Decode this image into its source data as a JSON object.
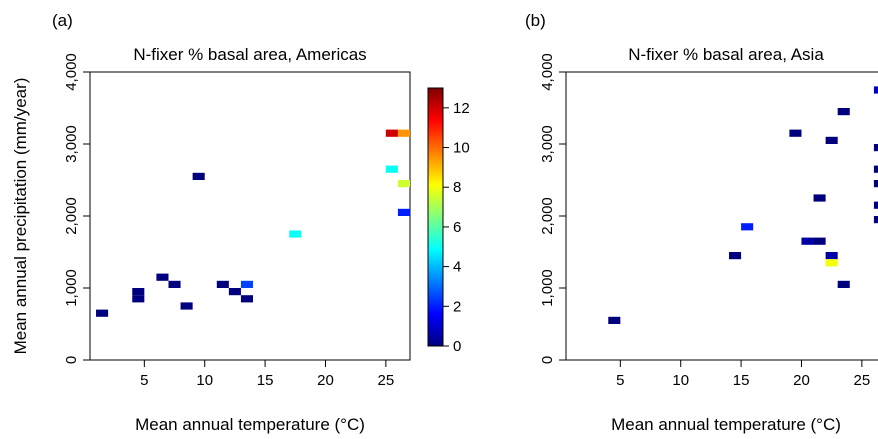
{
  "chart_data": [
    {
      "type": "heatmap",
      "panel_label": "(a)",
      "title": "N-fixer % basal area, Americas",
      "xlabel": "Mean annual temperature (°C)",
      "ylabel": "Mean annual precipitation (mm/year)",
      "xlim": [
        0.5,
        27
      ],
      "ylim": [
        0,
        4000
      ],
      "xticks": [
        5,
        10,
        15,
        20,
        25
      ],
      "yticks": [
        0,
        1000,
        2000,
        3000,
        4000
      ],
      "ytick_labels": [
        "0",
        "1,000",
        "2,000",
        "3,000",
        "4,000"
      ],
      "cells": [
        {
          "x": 1.5,
          "y": 650,
          "value": 0
        },
        {
          "x": 4.5,
          "y": 850,
          "value": 0
        },
        {
          "x": 4.5,
          "y": 950,
          "value": 0
        },
        {
          "x": 6.5,
          "y": 1150,
          "value": 0
        },
        {
          "x": 7.5,
          "y": 1050,
          "value": 0
        },
        {
          "x": 8.5,
          "y": 750,
          "value": 0
        },
        {
          "x": 9.5,
          "y": 2550,
          "value": 0
        },
        {
          "x": 11.5,
          "y": 1050,
          "value": 0
        },
        {
          "x": 12.5,
          "y": 950,
          "value": 0
        },
        {
          "x": 13.5,
          "y": 850,
          "value": 0
        },
        {
          "x": 13.5,
          "y": 1050,
          "value": 2.5
        },
        {
          "x": 17.5,
          "y": 1750,
          "value": 5
        },
        {
          "x": 25.5,
          "y": 3150,
          "value": 12
        },
        {
          "x": 26.5,
          "y": 3150,
          "value": 9.5
        },
        {
          "x": 25.5,
          "y": 2650,
          "value": 5
        },
        {
          "x": 26.5,
          "y": 2450,
          "value": 7.5
        },
        {
          "x": 26.5,
          "y": 2050,
          "value": 2
        }
      ]
    },
    {
      "type": "heatmap",
      "panel_label": "(b)",
      "title": "N-fixer % basal area, Asia",
      "xlabel": "Mean annual temperature (°C)",
      "ylabel": "",
      "xlim": [
        0.5,
        27
      ],
      "ylim": [
        0,
        4000
      ],
      "xticks": [
        5,
        10,
        15,
        20,
        25
      ],
      "yticks": [
        0,
        1000,
        2000,
        3000,
        4000
      ],
      "ytick_labels": [
        "0",
        "1,000",
        "2,000",
        "3,000",
        "4,000"
      ],
      "cells": [
        {
          "x": 4.5,
          "y": 550,
          "value": 0
        },
        {
          "x": 14.5,
          "y": 1450,
          "value": 0
        },
        {
          "x": 15.5,
          "y": 1850,
          "value": 2
        },
        {
          "x": 19.5,
          "y": 3150,
          "value": 0
        },
        {
          "x": 20.5,
          "y": 1650,
          "value": 0.5
        },
        {
          "x": 21.5,
          "y": 1650,
          "value": 0
        },
        {
          "x": 21.5,
          "y": 2250,
          "value": 0
        },
        {
          "x": 22.5,
          "y": 3050,
          "value": 0
        },
        {
          "x": 22.5,
          "y": 1450,
          "value": 0.5
        },
        {
          "x": 22.5,
          "y": 1350,
          "value": 8
        },
        {
          "x": 23.5,
          "y": 3450,
          "value": 0
        },
        {
          "x": 23.5,
          "y": 1050,
          "value": 0
        },
        {
          "x": 26.5,
          "y": 3750,
          "value": 1
        },
        {
          "x": 26.5,
          "y": 2950,
          "value": 0
        },
        {
          "x": 26.5,
          "y": 2650,
          "value": 0
        },
        {
          "x": 26.5,
          "y": 2450,
          "value": 0
        },
        {
          "x": 26.5,
          "y": 2150,
          "value": 0
        },
        {
          "x": 26.5,
          "y": 1950,
          "value": 0
        }
      ]
    }
  ],
  "colorbar": {
    "min": 0,
    "max": 13,
    "ticks": [
      0,
      2,
      4,
      6,
      8,
      10,
      12
    ],
    "colors": [
      "#00007F",
      "#0000FF",
      "#007FFF",
      "#00FFFF",
      "#7FFF7F",
      "#FFFF00",
      "#FF7F00",
      "#FF0000",
      "#7F0000"
    ]
  }
}
